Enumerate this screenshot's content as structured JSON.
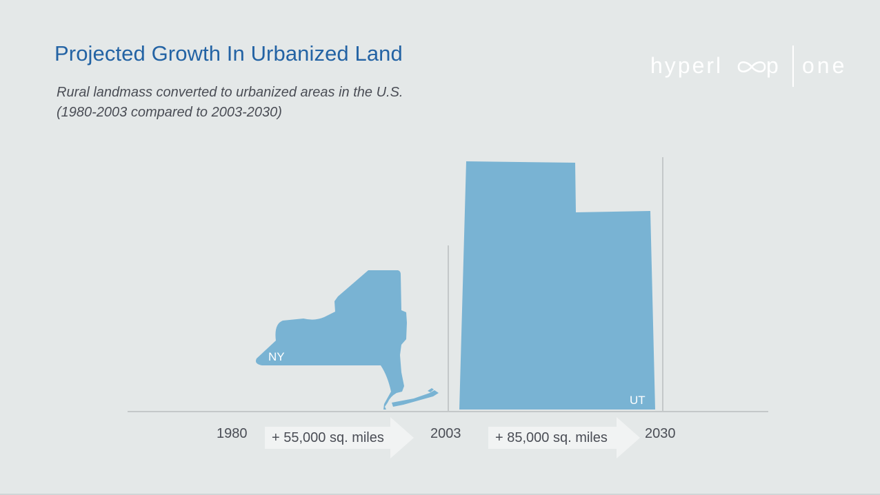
{
  "slide": {
    "title": "Projected Growth In Urbanized Land",
    "subtitle_line1": "Rural landmass converted to urbanized areas in the U.S.",
    "subtitle_line2": "(1980-2003 compared to 2003-2030)"
  },
  "logo": {
    "text_left": "hyperl",
    "text_right": "p",
    "text_after": "one",
    "color": "#ffffff"
  },
  "timeline": {
    "years": [
      "1980",
      "2003",
      "2030"
    ],
    "period1": {
      "label": "+ 55,000 sq. miles",
      "state": "NY"
    },
    "period2": {
      "label": "+ 85,000 sq. miles",
      "state": "UT"
    }
  },
  "colors": {
    "background": "#e4e8e8",
    "title": "#2363a4",
    "state_fill": "#79b3d3",
    "axis": "#c4c8c9",
    "arrow": "#f1f3f3",
    "text": "#4a4d55"
  }
}
